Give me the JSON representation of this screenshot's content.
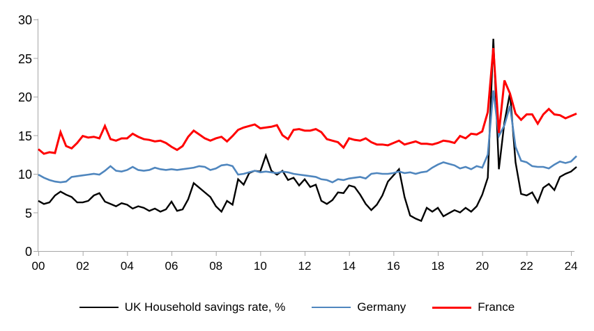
{
  "chart_data": {
    "type": "line",
    "title": "",
    "xlabel": "",
    "ylabel": "",
    "x_unit": "quarterly, 2000Q1 - 2024Q2",
    "x_tick_labels": [
      "00",
      "02",
      "04",
      "06",
      "08",
      "10",
      "12",
      "14",
      "16",
      "18",
      "20",
      "22",
      "24"
    ],
    "y_ticks": [
      0,
      5,
      10,
      15,
      20,
      25,
      30
    ],
    "ylim": [
      0,
      30
    ],
    "grid": false,
    "legend_position": "bottom",
    "axis_color": "#A6A6A6",
    "text_color": "#000000",
    "series": [
      {
        "name": "UK Household savings rate, %",
        "color": "#000000",
        "width": 2.4,
        "values": [
          6.5,
          6.1,
          6.3,
          7.2,
          7.7,
          7.3,
          7.0,
          6.3,
          6.3,
          6.5,
          7.2,
          7.5,
          6.4,
          6.1,
          5.8,
          6.2,
          6.0,
          5.5,
          5.8,
          5.6,
          5.2,
          5.5,
          5.1,
          5.4,
          6.4,
          5.2,
          5.4,
          6.7,
          8.8,
          8.2,
          7.6,
          7.0,
          5.8,
          5.1,
          6.5,
          6.0,
          9.3,
          8.6,
          10.1,
          10.4,
          10.3,
          12.4,
          10.4,
          9.9,
          10.4,
          9.2,
          9.5,
          8.5,
          9.3,
          8.3,
          8.6,
          6.5,
          6.1,
          6.6,
          7.6,
          7.5,
          8.5,
          8.3,
          7.3,
          6.1,
          5.3,
          6.0,
          7.2,
          9.0,
          9.8,
          10.6,
          7.0,
          4.6,
          4.2,
          3.9,
          5.6,
          5.1,
          5.6,
          4.5,
          4.9,
          5.3,
          5.0,
          5.6,
          5.1,
          5.8,
          7.3,
          9.5,
          27.5,
          10.6,
          16.7,
          20.5,
          11.5,
          7.4,
          7.2,
          7.6,
          6.3,
          8.2,
          8.7,
          7.9,
          9.6,
          10.0,
          10.3,
          10.9
        ]
      },
      {
        "name": "Germany",
        "color": "#4F86BE",
        "width": 2.6,
        "values": [
          9.9,
          9.5,
          9.2,
          9.0,
          8.9,
          9.0,
          9.6,
          9.7,
          9.8,
          9.9,
          10.0,
          9.9,
          10.4,
          11.0,
          10.4,
          10.3,
          10.5,
          10.9,
          10.5,
          10.4,
          10.5,
          10.8,
          10.6,
          10.5,
          10.6,
          10.5,
          10.6,
          10.7,
          10.8,
          11.0,
          10.9,
          10.5,
          10.7,
          11.1,
          11.2,
          11.0,
          9.9,
          10.0,
          10.2,
          10.4,
          10.2,
          10.3,
          10.2,
          10.1,
          10.3,
          10.2,
          10.0,
          9.9,
          9.8,
          9.7,
          9.6,
          9.3,
          9.2,
          8.9,
          9.3,
          9.2,
          9.4,
          9.5,
          9.6,
          9.4,
          10.0,
          10.1,
          10.0,
          10.0,
          10.1,
          10.3,
          10.1,
          10.2,
          10.0,
          10.2,
          10.3,
          10.8,
          11.2,
          11.5,
          11.3,
          11.1,
          10.7,
          10.9,
          10.6,
          11.0,
          10.8,
          12.5,
          20.8,
          14.9,
          16.3,
          18.8,
          13.5,
          11.7,
          11.5,
          11.0,
          10.9,
          10.9,
          10.7,
          11.2,
          11.6,
          11.4,
          11.6,
          12.3
        ]
      },
      {
        "name": "France",
        "color": "#FF0000",
        "width": 3.0,
        "values": [
          13.2,
          12.6,
          12.8,
          12.7,
          15.4,
          13.6,
          13.3,
          14.0,
          14.9,
          14.7,
          14.8,
          14.6,
          16.2,
          14.5,
          14.3,
          14.6,
          14.6,
          15.2,
          14.8,
          14.5,
          14.4,
          14.2,
          14.3,
          14.0,
          13.5,
          13.1,
          13.6,
          14.8,
          15.6,
          15.1,
          14.6,
          14.3,
          14.6,
          14.8,
          14.2,
          14.9,
          15.7,
          16.0,
          16.2,
          16.4,
          15.9,
          16.0,
          16.1,
          16.3,
          15.0,
          14.5,
          15.7,
          15.8,
          15.6,
          15.6,
          15.8,
          15.4,
          14.5,
          14.3,
          14.1,
          13.4,
          14.6,
          14.4,
          14.3,
          14.6,
          14.1,
          13.8,
          13.8,
          13.7,
          14.0,
          14.3,
          13.8,
          14.0,
          14.2,
          13.9,
          13.9,
          13.8,
          14.0,
          14.3,
          14.2,
          14.0,
          14.9,
          14.6,
          15.2,
          15.1,
          15.5,
          18.0,
          26.3,
          15.3,
          22.1,
          20.4,
          17.8,
          17.0,
          17.7,
          17.7,
          16.5,
          17.7,
          18.4,
          17.7,
          17.6,
          17.2,
          17.5,
          17.8
        ]
      }
    ]
  }
}
